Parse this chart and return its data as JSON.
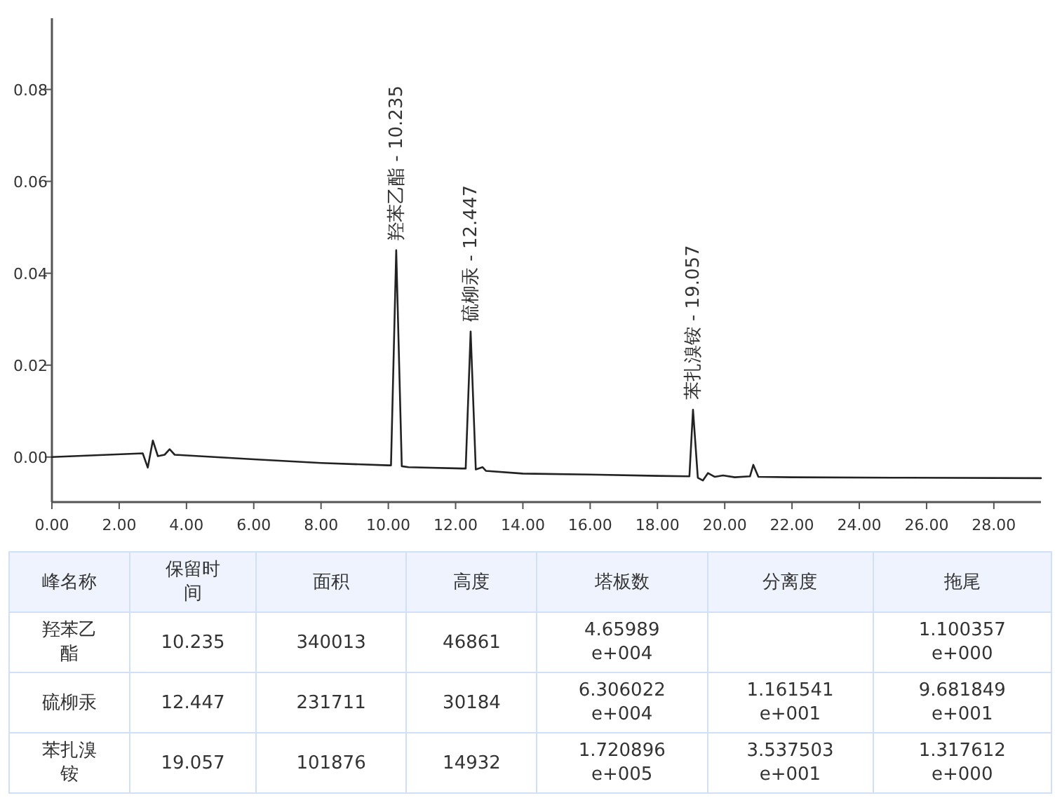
{
  "chart_data": [
    {
      "type": "line",
      "x": [
        0,
        2.7,
        2.85,
        3.0,
        3.15,
        3.35,
        3.5,
        3.65,
        6.0,
        8.0,
        10.0,
        10.08,
        10.235,
        10.4,
        10.6,
        12.2,
        12.3,
        12.447,
        12.6,
        12.8,
        12.9,
        14.0,
        16.0,
        18.0,
        18.9,
        18.95,
        19.057,
        19.2,
        19.35,
        19.5,
        19.7,
        19.95,
        20.3,
        20.75,
        20.85,
        21.0,
        22.0,
        25.4,
        29.4
      ],
      "values": [
        0,
        0.0008,
        -0.0023,
        0.0036,
        0.0002,
        0.0005,
        0.0017,
        0.0005,
        -0.0005,
        -0.0013,
        -0.0018,
        -0.0018,
        0.045,
        -0.002,
        -0.0022,
        -0.0025,
        -0.0025,
        0.0273,
        -0.0027,
        -0.0022,
        -0.003,
        -0.0036,
        -0.0038,
        -0.0041,
        -0.0042,
        -0.0042,
        0.0103,
        -0.0045,
        -0.0051,
        -0.0035,
        -0.0043,
        -0.004,
        -0.0044,
        -0.0042,
        -0.0017,
        -0.0043,
        -0.0044,
        -0.0045,
        -0.0046
      ],
      "color": "#222222",
      "xlim": [
        0,
        29.4
      ],
      "ylim": [
        -0.0098,
        0.0955
      ],
      "xticks": [
        {
          "value": 0,
          "label": "0.00"
        },
        {
          "value": 2,
          "label": "2.00"
        },
        {
          "value": 4,
          "label": "4.00"
        },
        {
          "value": 6,
          "label": "6.00"
        },
        {
          "value": 8,
          "label": "8.00"
        },
        {
          "value": 10,
          "label": "10.00"
        },
        {
          "value": 12,
          "label": "12.00"
        },
        {
          "value": 14,
          "label": "14.00"
        },
        {
          "value": 16,
          "label": "16.00"
        },
        {
          "value": 18,
          "label": "18.00"
        },
        {
          "value": 20,
          "label": "20.00"
        },
        {
          "value": 22,
          "label": "22.00"
        },
        {
          "value": 24,
          "label": "24.00"
        },
        {
          "value": 26,
          "label": "26.00"
        },
        {
          "value": 28,
          "label": "28.00"
        }
      ],
      "yticks": [
        {
          "value": 0,
          "label": "0.00"
        },
        {
          "value": 0.02,
          "label": "0.02"
        },
        {
          "value": 0.04,
          "label": "0.04"
        },
        {
          "value": 0.06,
          "label": "0.06"
        },
        {
          "value": 0.08,
          "label": "0.08"
        }
      ],
      "annotations": [
        {
          "text": "羟苯乙酯 - 10.235",
          "x": 10.235,
          "y": 0.045
        },
        {
          "text": "硫柳汞 - 12.447",
          "x": 12.447,
          "y": 0.0273
        },
        {
          "text": "苯扎溴铵 - 19.057",
          "x": 19.057,
          "y": 0.0103
        }
      ],
      "grid": false,
      "marker": "none",
      "line_style": "solid"
    },
    {
      "type": "other",
      "annotations": [
        "峰名称",
        "保留时间",
        "面积",
        "高度",
        "塔板数",
        "分离度",
        "拖尾",
        "羟苯乙酯",
        "10.235",
        "340013",
        "46861",
        "4.65989\ne+004",
        null,
        "1.100357\ne+000",
        "硫柳汞",
        "12.447",
        "231711",
        "30184",
        "6.306022\ne+004",
        "1.161541\ne+001",
        "9.681849\ne+001",
        "苯扎溴铵",
        "19.057",
        "101876",
        "14932",
        "1.720896\ne+005",
        "3.537503\ne+001",
        "1.317612\ne+000"
      ]
    }
  ]
}
